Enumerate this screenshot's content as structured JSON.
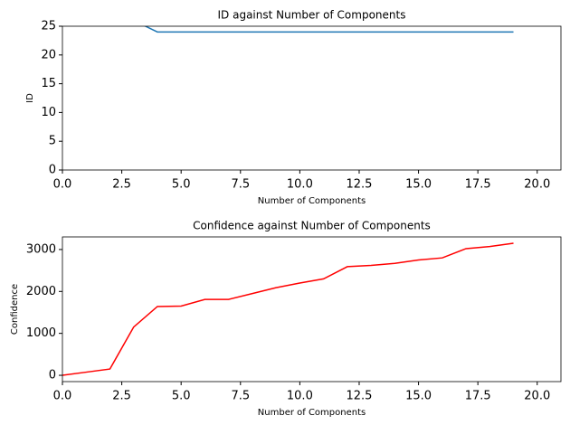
{
  "chart_data": [
    {
      "type": "line",
      "title": "ID against Number of Components",
      "xlabel": "Number of Components",
      "ylabel": "ID",
      "x": [
        3,
        4,
        5,
        6,
        7,
        8,
        9,
        10,
        11,
        12,
        13,
        14,
        15,
        16,
        17,
        18,
        19
      ],
      "series": [
        {
          "color": "#1f77b4",
          "values": [
            26,
            24,
            24,
            24,
            24,
            24,
            24,
            24,
            24,
            24,
            24,
            24,
            24,
            24,
            24,
            24,
            24
          ]
        }
      ],
      "xlim": [
        0,
        21
      ],
      "ylim": [
        0,
        25
      ],
      "xticks": [
        {
          "value": 0,
          "label": "0.0"
        },
        {
          "value": 2.5,
          "label": "2.5"
        },
        {
          "value": 5,
          "label": "5.0"
        },
        {
          "value": 7.5,
          "label": "7.5"
        },
        {
          "value": 10,
          "label": "10.0"
        },
        {
          "value": 12.5,
          "label": "12.5"
        },
        {
          "value": 15,
          "label": "15.0"
        },
        {
          "value": 17.5,
          "label": "17.5"
        },
        {
          "value": 20,
          "label": "20.0"
        }
      ],
      "yticks": [
        0,
        5,
        10,
        15,
        20,
        25
      ]
    },
    {
      "type": "line",
      "title": "Confidence against Number of Components",
      "xlabel": "Number of Components",
      "ylabel": "Confidence",
      "x": [
        0,
        1,
        2,
        3,
        4,
        5,
        6,
        7,
        8,
        9,
        10,
        11,
        12,
        13,
        14,
        15,
        16,
        17,
        18,
        19
      ],
      "series": [
        {
          "color": "#ff0000",
          "values": [
            0,
            75,
            150,
            1150,
            1640,
            1650,
            1810,
            1810,
            1950,
            2090,
            2200,
            2300,
            2590,
            2620,
            2670,
            2750,
            2800,
            3020,
            3070,
            3150
          ]
        }
      ],
      "xlim": [
        0,
        21
      ],
      "ylim": [
        -150,
        3300
      ],
      "xticks": [
        {
          "value": 0,
          "label": "0.0"
        },
        {
          "value": 2.5,
          "label": "2.5"
        },
        {
          "value": 5,
          "label": "5.0"
        },
        {
          "value": 7.5,
          "label": "7.5"
        },
        {
          "value": 10,
          "label": "10.0"
        },
        {
          "value": 12.5,
          "label": "12.5"
        },
        {
          "value": 15,
          "label": "15.0"
        },
        {
          "value": 17.5,
          "label": "17.5"
        },
        {
          "value": 20,
          "label": "20.0"
        }
      ],
      "yticks": [
        0,
        1000,
        2000,
        3000
      ]
    }
  ]
}
